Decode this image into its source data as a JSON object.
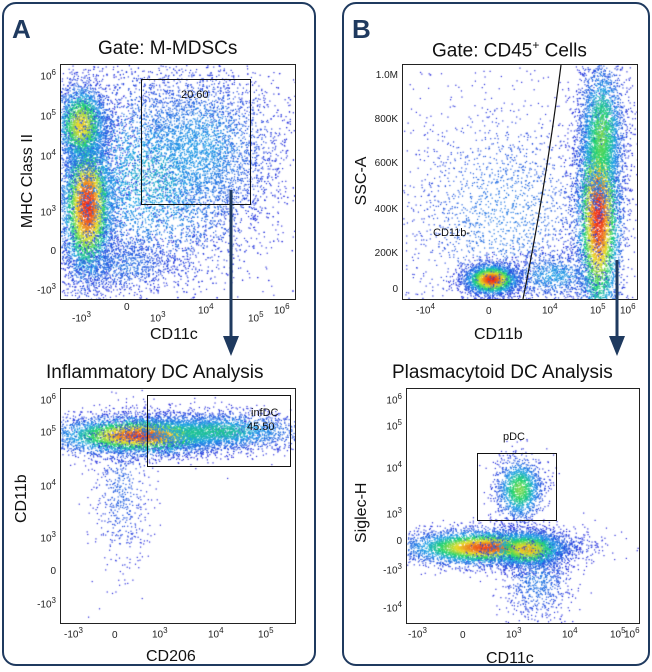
{
  "panels": [
    {
      "letter": "A",
      "gate_title": "Gate: M-MDSCs",
      "plot_top": {
        "xlabel": "CD11c",
        "ylabel": "MHC Class II",
        "gate": {
          "label": "20.60"
        },
        "yticks": [
          {
            "base": "10",
            "exp": "6"
          },
          {
            "base": "10",
            "exp": "5"
          },
          {
            "base": "10",
            "exp": "4"
          },
          {
            "base": "10",
            "exp": "3"
          },
          {
            "base": "0",
            "exp": ""
          },
          {
            "base": "-10",
            "exp": "3"
          }
        ],
        "xticks": [
          {
            "base": "-10",
            "exp": "3"
          },
          {
            "base": "0",
            "exp": ""
          },
          {
            "base": "10",
            "exp": "3"
          },
          {
            "base": "10",
            "exp": "4"
          },
          {
            "base": "10",
            "exp": "5"
          },
          {
            "base": "10",
            "exp": "6"
          }
        ]
      },
      "plot_bottom_title": "Inflammatory DC Analysis",
      "plot_bottom": {
        "xlabel": "CD206",
        "ylabel": "CD11b",
        "gate": {
          "label": "infDC",
          "value": "45.50"
        },
        "yticks": [
          {
            "base": "10",
            "exp": "6"
          },
          {
            "base": "10",
            "exp": "5"
          },
          {
            "base": "10",
            "exp": "4"
          },
          {
            "base": "10",
            "exp": "3"
          },
          {
            "base": "0",
            "exp": ""
          },
          {
            "base": "-10",
            "exp": "3"
          }
        ],
        "xticks": [
          {
            "base": "-10",
            "exp": "3"
          },
          {
            "base": "0",
            "exp": ""
          },
          {
            "base": "10",
            "exp": "3"
          },
          {
            "base": "10",
            "exp": "4"
          },
          {
            "base": "10",
            "exp": "5"
          }
        ]
      }
    },
    {
      "letter": "B",
      "gate_title_main": "Gate: CD45",
      "gate_title_sup": "+",
      "gate_title_rest": " Cells",
      "plot_top": {
        "xlabel": "CD11b",
        "ylabel": "SSC-A",
        "gate": {
          "label": "CD11b-"
        },
        "yticks": [
          {
            "base": "1.0M",
            "exp": ""
          },
          {
            "base": "800K",
            "exp": ""
          },
          {
            "base": "600K",
            "exp": ""
          },
          {
            "base": "400K",
            "exp": ""
          },
          {
            "base": "200K",
            "exp": ""
          },
          {
            "base": "0",
            "exp": ""
          }
        ],
        "xticks": [
          {
            "base": "-10",
            "exp": "4"
          },
          {
            "base": "0",
            "exp": ""
          },
          {
            "base": "10",
            "exp": "4"
          },
          {
            "base": "10",
            "exp": "5"
          },
          {
            "base": "10",
            "exp": "6"
          }
        ]
      },
      "plot_bottom_title": "Plasmacytoid DC Analysis",
      "plot_bottom": {
        "xlabel": "CD11c",
        "ylabel": "Siglec-H",
        "gate": {
          "label": "pDC"
        },
        "yticks": [
          {
            "base": "10",
            "exp": "6"
          },
          {
            "base": "10",
            "exp": "5"
          },
          {
            "base": "10",
            "exp": "4"
          },
          {
            "base": "10",
            "exp": "3"
          },
          {
            "base": "0",
            "exp": ""
          },
          {
            "base": "-10",
            "exp": "3"
          },
          {
            "base": "-10",
            "exp": "4"
          }
        ],
        "xticks": [
          {
            "base": "-10",
            "exp": "3"
          },
          {
            "base": "0",
            "exp": ""
          },
          {
            "base": "10",
            "exp": "3"
          },
          {
            "base": "10",
            "exp": "4"
          },
          {
            "base": "10",
            "exp": "5"
          },
          {
            "base": "10",
            "exp": "6"
          }
        ]
      }
    }
  ],
  "colors": {
    "panel_border": "#1f3a5f",
    "arrow": "#1f3a5f",
    "density_low": "#1f2fd6",
    "density_mid": "#19d66b",
    "density_high": "#ff2a10"
  }
}
